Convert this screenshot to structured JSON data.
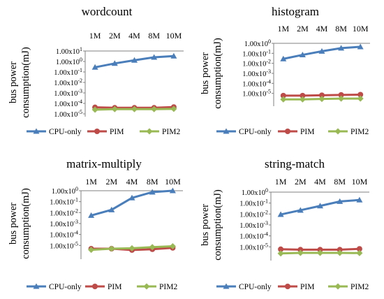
{
  "chart_data": [
    {
      "type": "line",
      "title": "wordcount",
      "ylabel": "bus power consumption(mJ)",
      "xlabel": "",
      "categories": [
        "1M",
        "2M",
        "4M",
        "8M",
        "10M"
      ],
      "y_scale": "log",
      "ylim": [
        1e-05,
        10
      ],
      "y_ticks": [
        "1.00x10^1",
        "1.00x10^0",
        "1.00x10^-1",
        "1.00x10^-2",
        "1.00x10^-3",
        "1.00x10^-4",
        "1.00x10^-5"
      ],
      "x_axis_position": "top",
      "legend_position": "bottom",
      "series": [
        {
          "name": "CPU-only",
          "color": "#4a7ebb",
          "marker": "triangle",
          "values": [
            0.28,
            0.65,
            1.3,
            2.5,
            3.3
          ]
        },
        {
          "name": "PIM",
          "color": "#be4b48",
          "marker": "circle",
          "values": [
            4.2e-05,
            3.8e-05,
            3.8e-05,
            3.8e-05,
            4.5e-05
          ]
        },
        {
          "name": "PIM2",
          "color": "#98b954",
          "marker": "diamond",
          "values": [
            2.5e-05,
            2.8e-05,
            2.8e-05,
            2.8e-05,
            3e-05
          ]
        }
      ]
    },
    {
      "type": "line",
      "title": "histogram",
      "ylabel": "bus power consumption(mJ)",
      "xlabel": "",
      "categories": [
        "1M",
        "2M",
        "4M",
        "8M",
        "10M"
      ],
      "y_scale": "log",
      "ylim": [
        1e-06,
        1
      ],
      "y_ticks": [
        "1.00x10^0",
        "1.00x10^-1",
        "1.00x10^-2",
        "1.00x10^-3",
        "1.00x10^-4",
        "1.00x10^-5"
      ],
      "x_axis_position": "top",
      "legend_position": "bottom",
      "series": [
        {
          "name": "CPU-only",
          "color": "#4a7ebb",
          "marker": "triangle",
          "values": [
            0.028,
            0.07,
            0.16,
            0.33,
            0.45
          ]
        },
        {
          "name": "PIM",
          "color": "#be4b48",
          "marker": "circle",
          "values": [
            6e-06,
            6e-06,
            6.5e-06,
            7e-06,
            7.5e-06
          ]
        },
        {
          "name": "PIM2",
          "color": "#98b954",
          "marker": "diamond",
          "values": [
            2.5e-06,
            2.5e-06,
            2.8e-06,
            3e-06,
            3e-06
          ]
        }
      ]
    },
    {
      "type": "line",
      "title": "matrix-multiply",
      "ylabel": "bus power consumption(mJ)",
      "xlabel": "",
      "categories": [
        "1M",
        "2M",
        "4M",
        "8M",
        "10M"
      ],
      "y_scale": "log",
      "ylim": [
        1e-06,
        1
      ],
      "y_ticks": [
        "1.00x10^0",
        "1.00x10^-1",
        "1.00x10^-2",
        "1.00x10^-3",
        "1.00x10^-4",
        "1.00x10^-5"
      ],
      "x_axis_position": "top",
      "legend_position": "bottom",
      "series": [
        {
          "name": "CPU-only",
          "color": "#4a7ebb",
          "marker": "triangle",
          "values": [
            0.0055,
            0.018,
            0.22,
            0.75,
            1.0
          ]
        },
        {
          "name": "PIM",
          "color": "#be4b48",
          "marker": "circle",
          "values": [
            5e-06,
            5e-06,
            3.8e-06,
            4.5e-06,
            6e-06
          ]
        },
        {
          "name": "PIM2",
          "color": "#98b954",
          "marker": "diamond",
          "values": [
            4e-06,
            5e-06,
            5.5e-06,
            7e-06,
            8.5e-06
          ]
        }
      ]
    },
    {
      "type": "line",
      "title": "string-match",
      "ylabel": "bus power consumption(mJ)",
      "xlabel": "",
      "categories": [
        "1M",
        "2M",
        "4M",
        "8M",
        "10M"
      ],
      "y_scale": "log",
      "ylim": [
        1e-06,
        1
      ],
      "y_ticks": [
        "1.00x10^0",
        "1.00x10^-1",
        "1.00x10^-2",
        "1.00x10^-3",
        "1.00x10^-4",
        "1.00x10^-5"
      ],
      "x_axis_position": "top",
      "legend_position": "bottom",
      "series": [
        {
          "name": "CPU-only",
          "color": "#4a7ebb",
          "marker": "triangle",
          "values": [
            0.009,
            0.022,
            0.055,
            0.14,
            0.19
          ]
        },
        {
          "name": "PIM",
          "color": "#be4b48",
          "marker": "circle",
          "values": [
            6e-06,
            5.5e-06,
            5.5e-06,
            5.5e-06,
            6.5e-06
          ]
        },
        {
          "name": "PIM2",
          "color": "#98b954",
          "marker": "diamond",
          "values": [
            2.5e-06,
            2.8e-06,
            2.8e-06,
            2.8e-06,
            2.7e-06
          ]
        }
      ]
    }
  ]
}
